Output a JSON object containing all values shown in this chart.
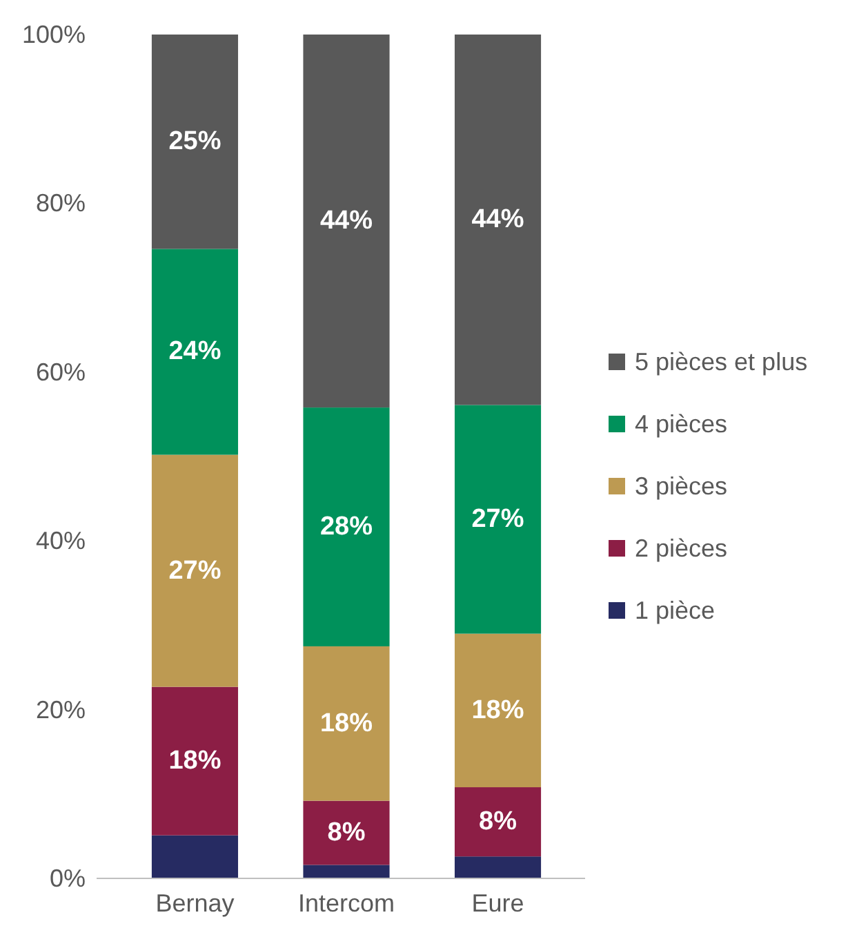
{
  "chart_data": {
    "type": "bar",
    "stacked": true,
    "categories": [
      "Bernay",
      "Intercom",
      "Eure"
    ],
    "series": [
      {
        "name": "1 pièce",
        "color": "#262b62",
        "values": [
          5.1,
          1.6,
          2.6
        ],
        "value_labels": [
          null,
          null,
          null
        ]
      },
      {
        "name": "2 pièces",
        "color": "#8c1e45",
        "values": [
          17.6,
          7.6,
          8.2
        ],
        "value_labels": [
          "18%",
          "8%",
          "8%"
        ]
      },
      {
        "name": "3 pièces",
        "color": "#bd9a52",
        "values": [
          27.5,
          18.3,
          18.2
        ],
        "value_labels": [
          "27%",
          "18%",
          "18%"
        ]
      },
      {
        "name": "4 pièces",
        "color": "#00915b",
        "values": [
          24.4,
          28.3,
          27.1
        ],
        "value_labels": [
          "24%",
          "28%",
          "27%"
        ]
      },
      {
        "name": "5 pièces et plus",
        "color": "#595959",
        "values": [
          25.4,
          44.2,
          43.9
        ],
        "value_labels": [
          "25%",
          "44%",
          "44%"
        ]
      }
    ],
    "ylim": [
      0,
      100
    ],
    "yticks": [
      {
        "value": 0,
        "label": "0%"
      },
      {
        "value": 20,
        "label": "20%"
      },
      {
        "value": 40,
        "label": "40%"
      },
      {
        "value": 60,
        "label": "60%"
      },
      {
        "value": 80,
        "label": "80%"
      },
      {
        "value": 100,
        "label": "100%"
      }
    ],
    "grid": false,
    "legend": "right"
  }
}
